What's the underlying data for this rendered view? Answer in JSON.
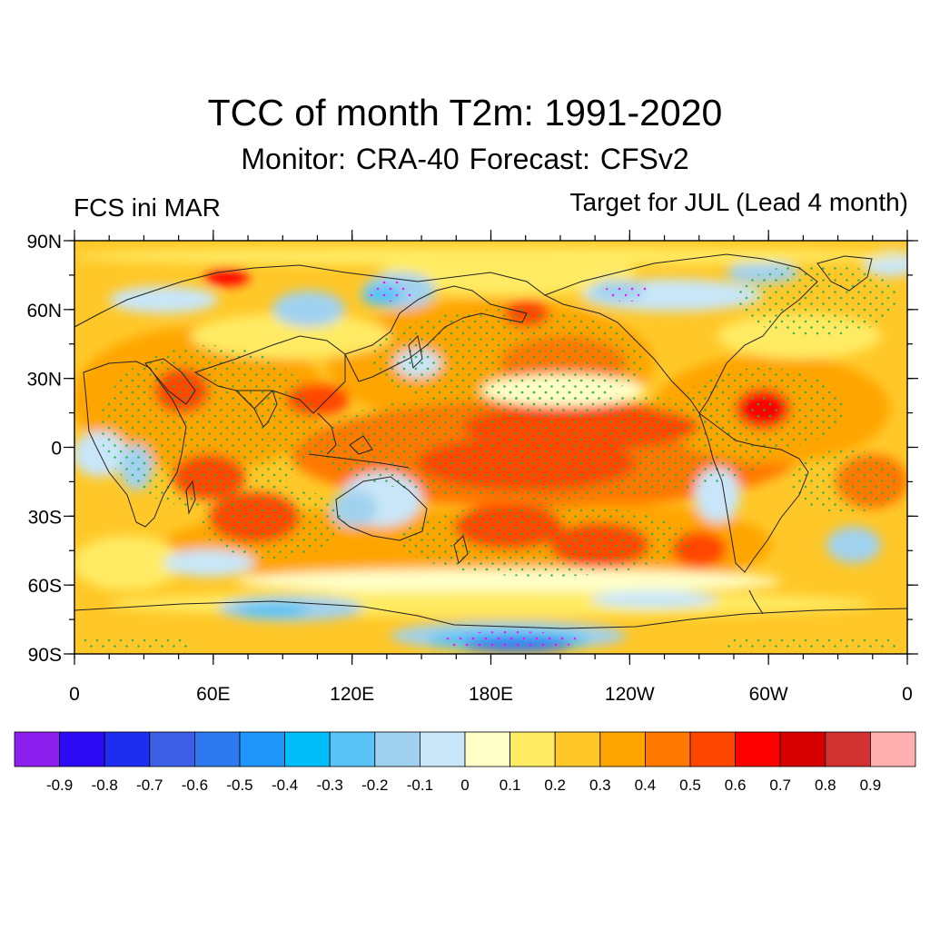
{
  "figure": {
    "title": "TCC of month T2m: 1991-2020",
    "subtitle": "Monitor: CRA-40   Forecast: CFSv2",
    "left_label": "FCS ini MAR",
    "right_label": "Target for JUL (Lead 4 month)"
  },
  "map_data": {
    "projection": "cylindrical-equidistant",
    "central_longitude": 180,
    "lat_ticks": [
      "90N",
      "60N",
      "30N",
      "0",
      "30S",
      "60S",
      "90S"
    ],
    "lon_ticks": [
      "0",
      "60E",
      "120E",
      "180E",
      "120W",
      "60W",
      "0"
    ],
    "field": "temporal correlation coefficient, 2m temperature",
    "stippling": "significant correlation"
  },
  "colorbar": {
    "labels": [
      "-0.9",
      "-0.8",
      "-0.7",
      "-0.6",
      "-0.5",
      "-0.4",
      "-0.3",
      "-0.2",
      "-0.1",
      "0",
      "0.1",
      "0.2",
      "0.3",
      "0.4",
      "0.5",
      "0.6",
      "0.7",
      "0.8",
      "0.9"
    ],
    "colors": [
      "#8C1EEE",
      "#2D0AF5",
      "#1E2DF0",
      "#3C5FE6",
      "#2E78F0",
      "#1E96FA",
      "#00BEFA",
      "#5AC3F5",
      "#A0D2F0",
      "#C8E6F8",
      "#FFFFC8",
      "#FFEB64",
      "#FFC828",
      "#FFA500",
      "#FF7800",
      "#FF4600",
      "#FF0000",
      "#D70000",
      "#D23232",
      "#FFAFAF"
    ]
  }
}
